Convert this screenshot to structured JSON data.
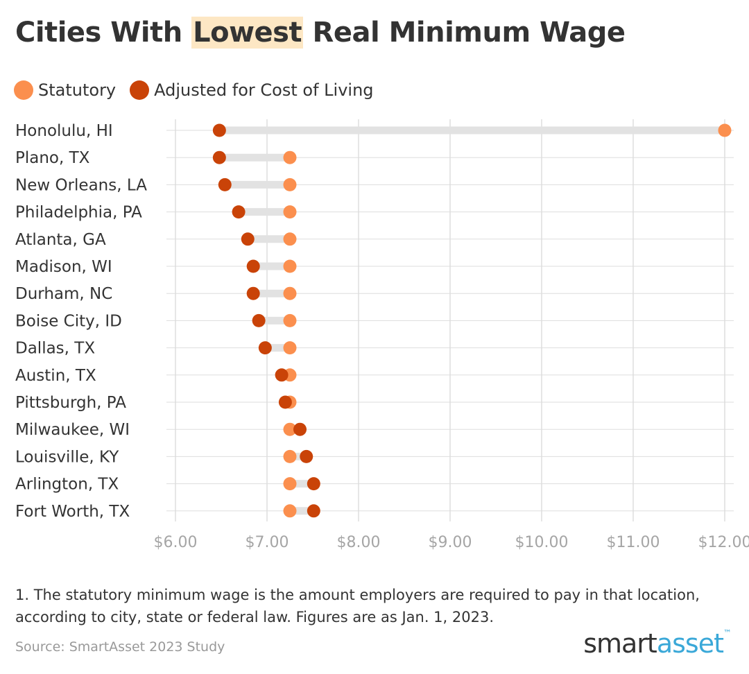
{
  "title": {
    "before": "Cities With ",
    "highlight": "Lowest",
    "after": " Real Minimum Wage"
  },
  "colors": {
    "statutory": "#fb8f4e",
    "adjusted": "#c94308",
    "connector": "#e2e2e2",
    "grid": "#dddddd",
    "tick_text": "#a5a5a5",
    "highlight": "#fde7c4"
  },
  "footnote": "1. The statutory minimum wage is the amount employers are required to pay in that location, according to city, state or federal law. Figures are as Jan. 1, 2023.",
  "source": "Source: SmartAsset 2023 Study",
  "logo": {
    "part1": "smart",
    "part2": "asset",
    "mark": "™"
  },
  "chart_data": {
    "type": "dumbbell",
    "title": "Cities With Lowest Real Minimum Wage",
    "legend_position": "top-left",
    "grid": true,
    "xlim": [
      6.0,
      12.0
    ],
    "x_ticks": [
      6,
      7,
      8,
      9,
      10,
      11,
      12
    ],
    "x_tick_labels": [
      "$6.00",
      "$7.00",
      "$8.00",
      "$9.00",
      "$10.00",
      "$11.00",
      "$12.00"
    ],
    "categories": [
      "Honolulu, HI",
      "Plano, TX",
      "New Orleans, LA",
      "Philadelphia, PA",
      "Atlanta, GA",
      "Madison, WI",
      "Durham, NC",
      "Boise City, ID",
      "Dallas, TX",
      "Austin, TX",
      "Pittsburgh, PA",
      "Milwaukee, WI",
      "Louisville, KY",
      "Arlington, TX",
      "Fort Worth, TX"
    ],
    "series": [
      {
        "name": "Statutory",
        "values": [
          12.0,
          7.25,
          7.25,
          7.25,
          7.25,
          7.25,
          7.25,
          7.25,
          7.25,
          7.25,
          7.25,
          7.25,
          7.25,
          7.25,
          7.25
        ]
      },
      {
        "name": "Adjusted for Cost of Living",
        "values": [
          6.48,
          6.48,
          6.54,
          6.69,
          6.79,
          6.85,
          6.85,
          6.91,
          6.98,
          7.16,
          7.2,
          7.36,
          7.43,
          7.51,
          7.51
        ]
      }
    ]
  }
}
